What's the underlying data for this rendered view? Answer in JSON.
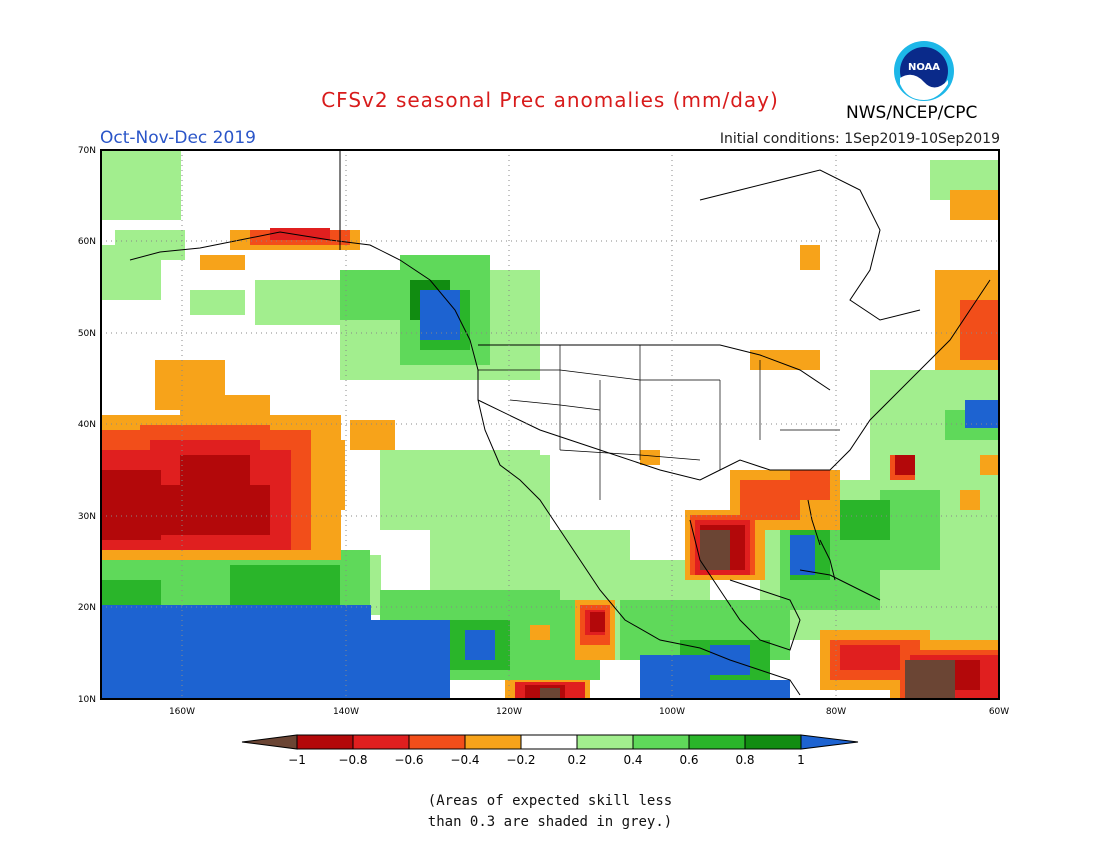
{
  "header": {
    "title": "CFSv2 seasonal Prec anomalies (mm/day)",
    "season": "Oct-Nov-Dec 2019",
    "initial_conditions": "Initial conditions: 1Sep2019-10Sep2019",
    "agency": "NWS/NCEP/CPC",
    "logo_text": "NOAA"
  },
  "map": {
    "lon_range": [
      -172,
      -60
    ],
    "lat_range": [
      10,
      70
    ],
    "lat_labels": [
      "70N",
      "60N",
      "50N",
      "40N",
      "30N",
      "20N",
      "10N"
    ],
    "lon_labels": [
      "160W",
      "140W",
      "120W",
      "100W",
      "80W",
      "60W"
    ]
  },
  "colorbar": {
    "labels": [
      "−1",
      "−0.8",
      "−0.6",
      "−0.4",
      "−0.2",
      "0.2",
      "0.4",
      "0.6",
      "0.8",
      "1"
    ],
    "colors": [
      "#6b4534",
      "#b3080a",
      "#e01f1f",
      "#f24e1a",
      "#f7a31a",
      "#ffffff",
      "#a2ee8e",
      "#5fd95a",
      "#2ab52a",
      "#118c11",
      "#1d63d1"
    ]
  },
  "note": {
    "line1": "(Areas of expected skill less",
    "line2": "than 0.3 are shaded in grey.)"
  }
}
